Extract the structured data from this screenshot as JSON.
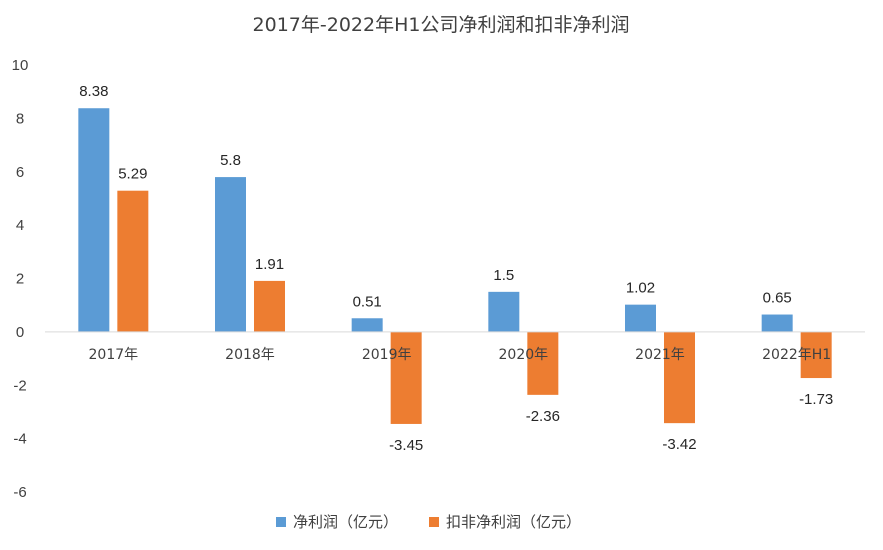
{
  "chart_data": {
    "type": "bar",
    "title": "2017年-2022年H1公司净利润和扣非净利润",
    "xlabel": "",
    "ylabel": "",
    "ylim": [
      -6,
      10
    ],
    "yticks": [
      10,
      8,
      6,
      4,
      2,
      0,
      -2,
      -4,
      -6
    ],
    "grid": false,
    "legend_position": "bottom",
    "categories": [
      "2017年",
      "2018年",
      "2019年",
      "2020年",
      "2021年",
      "2022年H1"
    ],
    "series": [
      {
        "name": "净利润（亿元）",
        "color": "#5b9bd5",
        "values": [
          8.38,
          5.8,
          0.51,
          1.5,
          1.02,
          0.65
        ]
      },
      {
        "name": "扣非净利润（亿元）",
        "color": "#ed7d31",
        "values": [
          5.29,
          1.91,
          -3.45,
          -2.36,
          -3.42,
          -1.73
        ]
      }
    ]
  }
}
